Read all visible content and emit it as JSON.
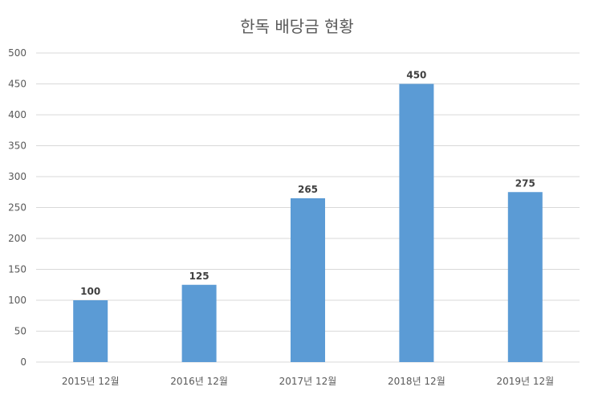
{
  "chart_data": {
    "type": "bar",
    "title": "한독 배당금 현황",
    "categories": [
      "2015년 12월",
      "2016년 12월",
      "2017년 12월",
      "2018년 12월",
      "2019년 12월"
    ],
    "series": [
      {
        "values": [
          100,
          125,
          265,
          450,
          275
        ]
      }
    ],
    "data_labels": [
      "100",
      "125",
      "265",
      "450",
      "275"
    ],
    "y_ticks": [
      "0",
      "50",
      "100",
      "150",
      "200",
      "250",
      "300",
      "350",
      "400",
      "450",
      "500"
    ],
    "ylim": [
      0,
      500
    ],
    "ytick_step": 50,
    "xlabel": "",
    "ylabel": "",
    "grid": true,
    "legend": "none",
    "colors": {
      "bar": "#5b9bd5",
      "grid": "#d9d9d9",
      "text": "#595959",
      "label": "#404040"
    }
  }
}
